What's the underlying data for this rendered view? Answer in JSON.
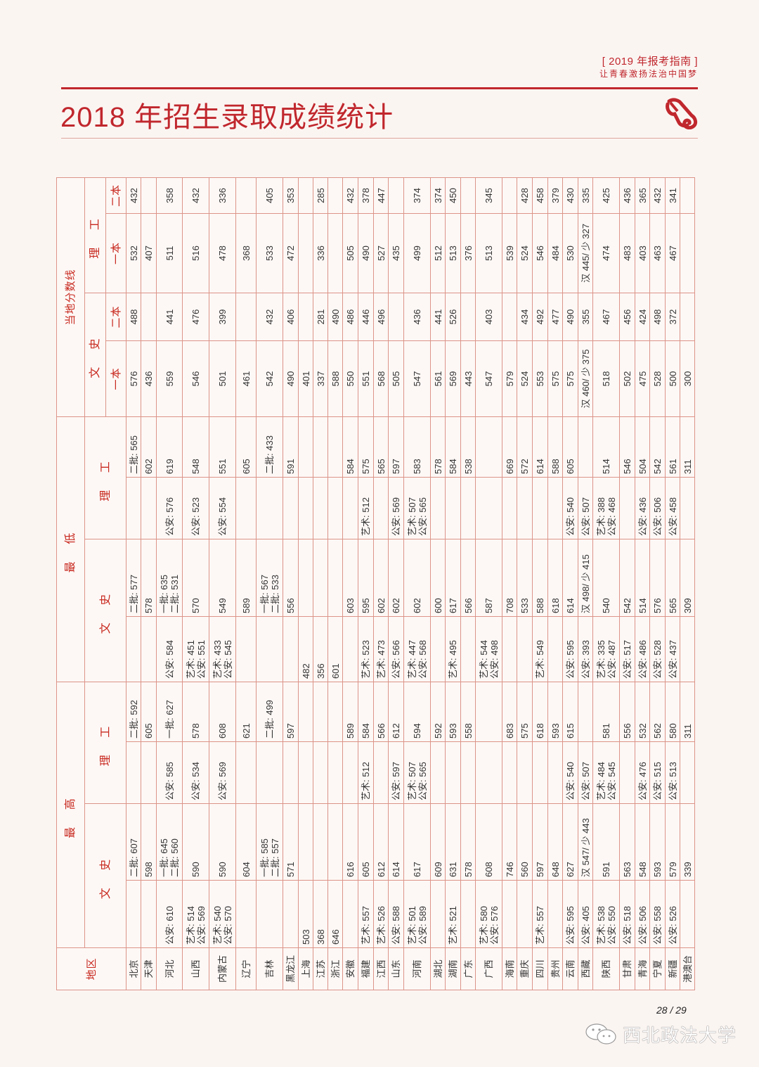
{
  "header": {
    "guide": "[ 2019 年报考指南 ]",
    "slogan": "让青春激扬法治中国梦",
    "title": "2018 年招生录取成绩统计"
  },
  "table_headers": {
    "region": "地区",
    "max": "最 高",
    "min": "最 低",
    "local": "当地分数线",
    "wen": "文 史",
    "li": "理 工",
    "tier1": "一本",
    "tier2": "二本"
  },
  "provinces": [
    {
      "name": "北京",
      "max_wen_special": [],
      "max_wen": [
        "二批: 607"
      ],
      "max_li_special": [],
      "max_li": [
        "二批: 592"
      ],
      "min_wen_special": [],
      "min_wen": [
        "二批: 577"
      ],
      "min_li_special": [],
      "min_li": [
        "二批: 565"
      ],
      "line_wen1": "576",
      "line_wen2": "488",
      "line_li1": "532",
      "line_li2": "432"
    },
    {
      "name": "天津",
      "max_wen_special": [],
      "max_wen": [
        "598"
      ],
      "max_li_special": [],
      "max_li": [
        "605"
      ],
      "min_wen_special": [],
      "min_wen": [
        "578"
      ],
      "min_li_special": [],
      "min_li": [
        "602"
      ],
      "line_wen1": "436",
      "line_wen2": "",
      "line_li1": "407",
      "line_li2": ""
    },
    {
      "name": "河北",
      "max_wen_special": [
        "公安: 610"
      ],
      "max_wen": [
        "一批: 645",
        "二批: 560"
      ],
      "max_li_special": [
        "公安: 585"
      ],
      "max_li": [
        "一批: 627"
      ],
      "min_wen_special": [
        "公安: 584"
      ],
      "min_wen": [
        "一批: 635",
        "二批: 531"
      ],
      "min_li_special": [
        "公安: 576"
      ],
      "min_li": [
        "619"
      ],
      "line_wen1": "559",
      "line_wen2": "441",
      "line_li1": "511",
      "line_li2": "358"
    },
    {
      "name": "山西",
      "max_wen_special": [
        "艺术: 514",
        "公安: 569"
      ],
      "max_wen": [
        "590"
      ],
      "max_li_special": [
        "公安: 534"
      ],
      "max_li": [
        "578"
      ],
      "min_wen_special": [
        "艺术: 451",
        "公安: 551"
      ],
      "min_wen": [
        "570"
      ],
      "min_li_special": [
        "公安: 523"
      ],
      "min_li": [
        "548"
      ],
      "line_wen1": "546",
      "line_wen2": "476",
      "line_li1": "516",
      "line_li2": "432"
    },
    {
      "name": "内蒙古",
      "max_wen_special": [
        "艺术: 540",
        "公安: 570"
      ],
      "max_wen": [
        "590"
      ],
      "max_li_special": [
        "公安: 569"
      ],
      "max_li": [
        "608"
      ],
      "min_wen_special": [
        "艺术: 433",
        "公安: 545"
      ],
      "min_wen": [
        "549"
      ],
      "min_li_special": [
        "公安: 554"
      ],
      "min_li": [
        "551"
      ],
      "line_wen1": "501",
      "line_wen2": "399",
      "line_li1": "478",
      "line_li2": "336"
    },
    {
      "name": "辽宁",
      "max_wen_special": [],
      "max_wen": [
        "604"
      ],
      "max_li_special": [],
      "max_li": [
        "621"
      ],
      "min_wen_special": [],
      "min_wen": [
        "589"
      ],
      "min_li_special": [],
      "min_li": [
        "605"
      ],
      "line_wen1": "461",
      "line_wen2": "",
      "line_li1": "368",
      "line_li2": ""
    },
    {
      "name": "吉林",
      "max_wen_special": [],
      "max_wen": [
        "一批: 585",
        "二批: 557"
      ],
      "max_li_special": [],
      "max_li": [
        "二批: 499"
      ],
      "min_wen_special": [],
      "min_wen": [
        "一批: 567",
        "二批: 533"
      ],
      "min_li_special": [],
      "min_li": [
        "二批: 433"
      ],
      "line_wen1": "542",
      "line_wen2": "432",
      "line_li1": "533",
      "line_li2": "405"
    },
    {
      "name": "黑龙江",
      "max_wen_special": [],
      "max_wen": [
        "571"
      ],
      "max_li_special": [],
      "max_li": [
        "597"
      ],
      "min_wen_special": [],
      "min_wen": [
        "556"
      ],
      "min_li_special": [],
      "min_li": [
        "591"
      ],
      "line_wen1": "490",
      "line_wen2": "406",
      "line_li1": "472",
      "line_li2": "353"
    },
    {
      "name": "上海",
      "max_wen_special": [
        "503"
      ],
      "max_wen": [],
      "max_li_special": [],
      "max_li": [],
      "min_wen_special": [
        "482"
      ],
      "min_wen": [],
      "min_li_special": [],
      "min_li": [],
      "line_wen1": "401",
      "line_wen2": "",
      "line_li1": "",
      "line_li2": ""
    },
    {
      "name": "江苏",
      "max_wen_special": [
        "368"
      ],
      "max_wen": [],
      "max_li_special": [],
      "max_li": [],
      "min_wen_special": [
        "356"
      ],
      "min_wen": [],
      "min_li_special": [],
      "min_li": [],
      "line_wen1": "337",
      "line_wen2": "281",
      "line_li1": "336",
      "line_li2": "285"
    },
    {
      "name": "浙江",
      "max_wen_special": [
        "646"
      ],
      "max_wen": [],
      "max_li_special": [],
      "max_li": [],
      "min_wen_special": [
        "601"
      ],
      "min_wen": [],
      "min_li_special": [],
      "min_li": [],
      "line_wen1": "588",
      "line_wen2": "490",
      "line_li1": "",
      "line_li2": ""
    },
    {
      "name": "安徽",
      "max_wen_special": [],
      "max_wen": [
        "616"
      ],
      "max_li_special": [],
      "max_li": [
        "589"
      ],
      "min_wen_special": [],
      "min_wen": [
        "603"
      ],
      "min_li_special": [],
      "min_li": [
        "584"
      ],
      "line_wen1": "550",
      "line_wen2": "486",
      "line_li1": "505",
      "line_li2": "432"
    },
    {
      "name": "福建",
      "max_wen_special": [
        "艺术: 557"
      ],
      "max_wen": [
        "605"
      ],
      "max_li_special": [
        "艺术: 512"
      ],
      "max_li": [
        "584"
      ],
      "min_wen_special": [
        "艺术: 523"
      ],
      "min_wen": [
        "595"
      ],
      "min_li_special": [
        "艺术: 512"
      ],
      "min_li": [
        "575"
      ],
      "line_wen1": "551",
      "line_wen2": "446",
      "line_li1": "490",
      "line_li2": "378"
    },
    {
      "name": "江西",
      "max_wen_special": [
        "艺术: 526"
      ],
      "max_wen": [
        "612"
      ],
      "max_li_special": [],
      "max_li": [
        "566"
      ],
      "min_wen_special": [
        "艺术: 473"
      ],
      "min_wen": [
        "602"
      ],
      "min_li_special": [],
      "min_li": [
        "565"
      ],
      "line_wen1": "568",
      "line_wen2": "496",
      "line_li1": "527",
      "line_li2": "447"
    },
    {
      "name": "山东",
      "max_wen_special": [
        "公安: 588"
      ],
      "max_wen": [
        "614"
      ],
      "max_li_special": [
        "公安: 597"
      ],
      "max_li": [
        "612"
      ],
      "min_wen_special": [
        "公安: 566"
      ],
      "min_wen": [
        "602"
      ],
      "min_li_special": [
        "公安: 569"
      ],
      "min_li": [
        "597"
      ],
      "line_wen1": "505",
      "line_wen2": "",
      "line_li1": "435",
      "line_li2": ""
    },
    {
      "name": "河南",
      "max_wen_special": [
        "艺术: 501",
        "公安: 589"
      ],
      "max_wen": [
        "617"
      ],
      "max_li_special": [
        "艺术: 507",
        "公安: 565"
      ],
      "max_li": [
        "594"
      ],
      "min_wen_special": [
        "艺术: 447",
        "公安: 568"
      ],
      "min_wen": [
        "602"
      ],
      "min_li_special": [
        "艺术: 507",
        "公安: 565"
      ],
      "min_li": [
        "583"
      ],
      "line_wen1": "547",
      "line_wen2": "436",
      "line_li1": "499",
      "line_li2": "374"
    },
    {
      "name": "湖北",
      "max_wen_special": [],
      "max_wen": [
        "609"
      ],
      "max_li_special": [],
      "max_li": [
        "592"
      ],
      "min_wen_special": [],
      "min_wen": [
        "600"
      ],
      "min_li_special": [],
      "min_li": [
        "578"
      ],
      "line_wen1": "561",
      "line_wen2": "441",
      "line_li1": "512",
      "line_li2": "374"
    },
    {
      "name": "湖南",
      "max_wen_special": [
        "艺术: 521"
      ],
      "max_wen": [
        "631"
      ],
      "max_li_special": [],
      "max_li": [
        "593"
      ],
      "min_wen_special": [
        "艺术: 495"
      ],
      "min_wen": [
        "617"
      ],
      "min_li_special": [],
      "min_li": [
        "584"
      ],
      "line_wen1": "569",
      "line_wen2": "526",
      "line_li1": "513",
      "line_li2": "450"
    },
    {
      "name": "广东",
      "max_wen_special": [],
      "max_wen": [
        "578"
      ],
      "max_li_special": [],
      "max_li": [
        "558"
      ],
      "min_wen_special": [],
      "min_wen": [
        "566"
      ],
      "min_li_special": [],
      "min_li": [
        "538"
      ],
      "line_wen1": "443",
      "line_wen2": "",
      "line_li1": "376",
      "line_li2": ""
    },
    {
      "name": "广西",
      "max_wen_special": [
        "艺术: 580",
        "公安: 576"
      ],
      "max_wen": [
        "608"
      ],
      "max_li_special": [],
      "max_li": [],
      "min_wen_special": [
        "艺术: 544",
        "公安: 498"
      ],
      "min_wen": [
        "587"
      ],
      "min_li_special": [],
      "min_li": [],
      "line_wen1": "547",
      "line_wen2": "403",
      "line_li1": "513",
      "line_li2": "345"
    },
    {
      "name": "海南",
      "max_wen_special": [],
      "max_wen": [
        "746"
      ],
      "max_li_special": [],
      "max_li": [
        "683"
      ],
      "min_wen_special": [],
      "min_wen": [
        "708"
      ],
      "min_li_special": [],
      "min_li": [
        "669"
      ],
      "line_wen1": "579",
      "line_wen2": "",
      "line_li1": "539",
      "line_li2": ""
    },
    {
      "name": "重庆",
      "max_wen_special": [],
      "max_wen": [
        "560"
      ],
      "max_li_special": [],
      "max_li": [
        "575"
      ],
      "min_wen_special": [],
      "min_wen": [
        "533"
      ],
      "min_li_special": [],
      "min_li": [
        "572"
      ],
      "line_wen1": "524",
      "line_wen2": "434",
      "line_li1": "524",
      "line_li2": "428"
    },
    {
      "name": "四川",
      "max_wen_special": [
        "艺术: 557"
      ],
      "max_wen": [
        "597"
      ],
      "max_li_special": [],
      "max_li": [
        "618"
      ],
      "min_wen_special": [
        "艺术: 549"
      ],
      "min_wen": [
        "588"
      ],
      "min_li_special": [],
      "min_li": [
        "614"
      ],
      "line_wen1": "553",
      "line_wen2": "492",
      "line_li1": "546",
      "line_li2": "458"
    },
    {
      "name": "贵州",
      "max_wen_special": [],
      "max_wen": [
        "648"
      ],
      "max_li_special": [],
      "max_li": [
        "593"
      ],
      "min_wen_special": [],
      "min_wen": [
        "618"
      ],
      "min_li_special": [],
      "min_li": [
        "588"
      ],
      "line_wen1": "575",
      "line_wen2": "477",
      "line_li1": "484",
      "line_li2": "379"
    },
    {
      "name": "云南",
      "max_wen_special": [
        "公安: 595"
      ],
      "max_wen": [
        "627"
      ],
      "max_li_special": [
        "公安: 540"
      ],
      "max_li": [
        "615"
      ],
      "min_wen_special": [
        "公安: 595"
      ],
      "min_wen": [
        "614"
      ],
      "min_li_special": [
        "公安: 540"
      ],
      "min_li": [
        "605"
      ],
      "line_wen1": "575",
      "line_wen2": "490",
      "line_li1": "530",
      "line_li2": "430"
    },
    {
      "name": "西藏",
      "max_wen_special": [
        "公安: 405"
      ],
      "max_wen": [
        "汉 547/ 少 443"
      ],
      "max_li_special": [
        "公安: 507"
      ],
      "max_li": [],
      "min_wen_special": [
        "公安: 393"
      ],
      "min_wen": [
        "汉 498/ 少 415"
      ],
      "min_li_special": [
        "公安: 507"
      ],
      "min_li": [],
      "line_wen1": "汉 460/ 少 375",
      "line_wen2": "355",
      "line_li1": "汉 445/ 少 327",
      "line_li2": "335"
    },
    {
      "name": "陕西",
      "max_wen_special": [
        "艺术: 538",
        "公安: 550"
      ],
      "max_wen": [
        "591"
      ],
      "max_li_special": [
        "艺术: 484",
        "公安: 545"
      ],
      "max_li": [
        "581"
      ],
      "min_wen_special": [
        "艺术: 335",
        "公安: 487"
      ],
      "min_wen": [
        "540"
      ],
      "min_li_special": [
        "艺术: 388",
        "公安: 468"
      ],
      "min_li": [
        "514"
      ],
      "line_wen1": "518",
      "line_wen2": "467",
      "line_li1": "474",
      "line_li2": "425"
    },
    {
      "name": "甘肃",
      "max_wen_special": [
        "公安: 518"
      ],
      "max_wen": [
        "563"
      ],
      "max_li_special": [],
      "max_li": [
        "556"
      ],
      "min_wen_special": [
        "公安: 517"
      ],
      "min_wen": [
        "542"
      ],
      "min_li_special": [],
      "min_li": [
        "546"
      ],
      "line_wen1": "502",
      "line_wen2": "456",
      "line_li1": "483",
      "line_li2": "436"
    },
    {
      "name": "青海",
      "max_wen_special": [
        "公安: 506"
      ],
      "max_wen": [
        "548"
      ],
      "max_li_special": [
        "公安: 476"
      ],
      "max_li": [
        "532"
      ],
      "min_wen_special": [
        "公安: 486"
      ],
      "min_wen": [
        "514"
      ],
      "min_li_special": [
        "公安: 436"
      ],
      "min_li": [
        "504"
      ],
      "line_wen1": "475",
      "line_wen2": "424",
      "line_li1": "403",
      "line_li2": "365"
    },
    {
      "name": "宁夏",
      "max_wen_special": [
        "公安: 558"
      ],
      "max_wen": [
        "593"
      ],
      "max_li_special": [
        "公安: 515"
      ],
      "max_li": [
        "562"
      ],
      "min_wen_special": [
        "公安: 528"
      ],
      "min_wen": [
        "576"
      ],
      "min_li_special": [
        "公安: 506"
      ],
      "min_li": [
        "542"
      ],
      "line_wen1": "528",
      "line_wen2": "498",
      "line_li1": "463",
      "line_li2": "432"
    },
    {
      "name": "新疆",
      "max_wen_special": [
        "公安: 526"
      ],
      "max_wen": [
        "579"
      ],
      "max_li_special": [
        "公安: 513"
      ],
      "max_li": [
        "580"
      ],
      "min_wen_special": [
        "公安: 437"
      ],
      "min_wen": [
        "565"
      ],
      "min_li_special": [
        "公安: 458"
      ],
      "min_li": [
        "561"
      ],
      "line_wen1": "500",
      "line_wen2": "372",
      "line_li1": "467",
      "line_li2": "341"
    },
    {
      "name": "港澳台",
      "max_wen_special": [],
      "max_wen": [
        "339"
      ],
      "max_li_special": [],
      "max_li": [
        "311"
      ],
      "min_wen_special": [],
      "min_wen": [
        "309"
      ],
      "min_li_special": [],
      "min_li": [
        "311"
      ],
      "line_wen1": "300",
      "line_wen2": "",
      "line_li1": "",
      "line_li2": ""
    }
  ],
  "footer": {
    "page": "28 / 29",
    "watermark": "西北政法大学"
  },
  "colors": {
    "accent": "#c0272d",
    "grid": "#dc9488",
    "background": "#fbf5f2"
  }
}
